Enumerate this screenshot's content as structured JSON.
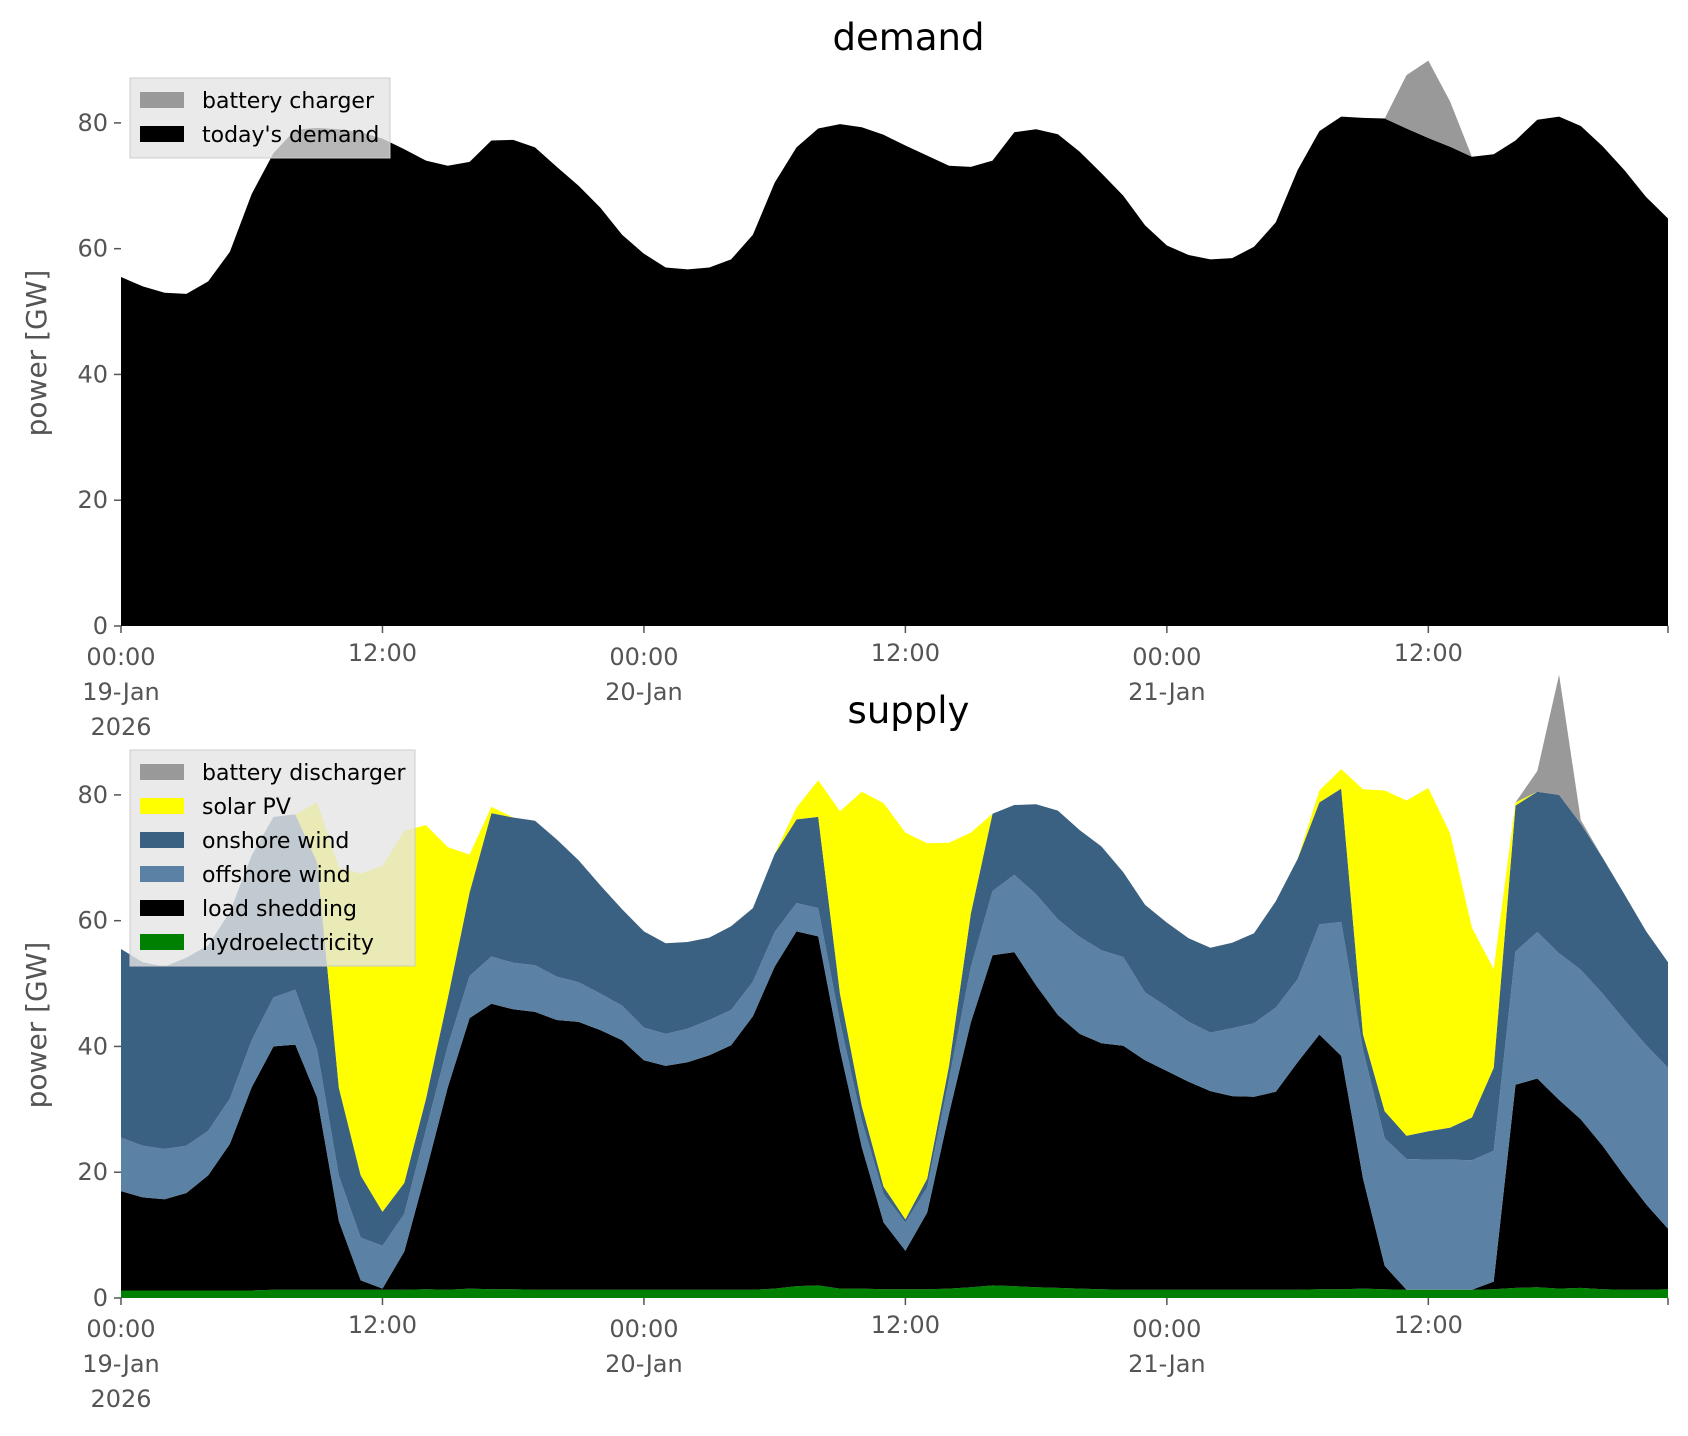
{
  "chart_data": [
    {
      "type": "area",
      "stacked": true,
      "title": "demand",
      "ylabel": "power [GW]",
      "xlabel": "",
      "ylim": [
        0,
        90
      ],
      "xlim": [
        "2026-01-19 00:00",
        "2026-01-21 23:00"
      ],
      "x_start": "2026-01-19 00:00",
      "x_step_hours": 1,
      "y_ticks": [
        0,
        20,
        40,
        60,
        80
      ],
      "x_ticks": [
        {
          "hour": 0,
          "lines": [
            "00:00",
            "19-Jan",
            "2026"
          ]
        },
        {
          "hour": 12,
          "lines": [
            "12:00"
          ]
        },
        {
          "hour": 24,
          "lines": [
            "00:00",
            "20-Jan"
          ]
        },
        {
          "hour": 36,
          "lines": [
            "12:00"
          ]
        },
        {
          "hour": 48,
          "lines": [
            "00:00",
            "21-Jan"
          ]
        },
        {
          "hour": 60,
          "lines": [
            "12:00"
          ]
        },
        {
          "hour": 71,
          "lines": []
        }
      ],
      "grid": false,
      "legend_position": "top-left",
      "series": [
        {
          "name": "today's demand",
          "color": "#000000",
          "values": [
            55.5,
            54,
            53,
            52.8,
            54.8,
            59.5,
            68.7,
            75.2,
            78.9,
            79.2,
            79,
            78.5,
            77.5,
            75.8,
            74,
            73.2,
            73.8,
            77.2,
            77.3,
            76.1,
            73,
            70,
            66.5,
            62.2,
            59.2,
            57,
            56.7,
            57,
            58.3,
            62.2,
            70.5,
            76.1,
            79.1,
            79.8,
            79.3,
            78.1,
            76.4,
            74.8,
            73.2,
            73,
            74,
            78.5,
            79,
            78.2,
            75.4,
            72,
            68.4,
            63.7,
            60.5,
            59,
            58.3,
            58.5,
            60.3,
            64.2,
            72.5,
            78.7,
            81,
            80.8,
            80.7,
            79.1,
            77.6,
            76.2,
            74.6,
            75,
            77.2,
            80.5,
            81,
            79.5,
            76.3,
            72.5,
            68.2,
            64.8
          ]
        },
        {
          "name": "battery charger",
          "color": "#999999",
          "values": [
            0,
            0,
            0,
            0,
            0,
            0,
            0,
            0,
            0,
            0,
            0,
            0,
            0,
            0,
            0,
            0,
            0,
            0,
            0,
            0,
            0,
            0,
            0,
            0,
            0,
            0,
            0,
            0,
            0,
            0,
            0,
            0,
            0,
            0,
            0,
            0,
            0,
            0,
            0,
            0,
            0,
            0,
            0,
            0,
            0,
            0,
            0,
            0,
            0,
            0,
            0,
            0,
            0,
            0,
            0,
            0,
            0,
            0,
            0,
            8.5,
            12.3,
            7.2,
            0,
            0,
            0,
            0,
            0,
            0,
            0,
            0,
            0,
            0
          ]
        }
      ],
      "legend_order": [
        "battery charger",
        "today's demand"
      ]
    },
    {
      "type": "area",
      "stacked": true,
      "title": "supply",
      "ylabel": "power [GW]",
      "xlabel": "",
      "ylim": [
        0,
        90
      ],
      "xlim": [
        "2026-01-19 00:00",
        "2026-01-21 23:00"
      ],
      "x_start": "2026-01-19 00:00",
      "x_step_hours": 1,
      "y_ticks": [
        0,
        20,
        40,
        60,
        80
      ],
      "x_ticks": [
        {
          "hour": 0,
          "lines": [
            "00:00",
            "19-Jan",
            "2026"
          ]
        },
        {
          "hour": 12,
          "lines": [
            "12:00"
          ]
        },
        {
          "hour": 24,
          "lines": [
            "00:00",
            "20-Jan"
          ]
        },
        {
          "hour": 36,
          "lines": [
            "12:00"
          ]
        },
        {
          "hour": 48,
          "lines": [
            "00:00",
            "21-Jan"
          ]
        },
        {
          "hour": 60,
          "lines": [
            "12:00"
          ]
        },
        {
          "hour": 71,
          "lines": []
        }
      ],
      "grid": false,
      "legend_position": "top-left",
      "series": [
        {
          "name": "hydroelectricity",
          "color": "#008000",
          "values": [
            1.2,
            1.2,
            1.2,
            1.2,
            1.2,
            1.2,
            1.2,
            1.3,
            1.3,
            1.3,
            1.3,
            1.3,
            1.3,
            1.3,
            1.4,
            1.3,
            1.5,
            1.4,
            1.4,
            1.3,
            1.3,
            1.3,
            1.3,
            1.3,
            1.3,
            1.3,
            1.3,
            1.3,
            1.3,
            1.3,
            1.5,
            1.9,
            2,
            1.5,
            1.5,
            1.4,
            1.4,
            1.4,
            1.5,
            1.7,
            2,
            1.9,
            1.7,
            1.6,
            1.5,
            1.4,
            1.3,
            1.3,
            1.3,
            1.3,
            1.3,
            1.3,
            1.3,
            1.3,
            1.3,
            1.4,
            1.4,
            1.5,
            1.4,
            1.3,
            1.3,
            1.3,
            1.3,
            1.4,
            1.6,
            1.7,
            1.5,
            1.6,
            1.4,
            1.3,
            1.3,
            1.4
          ]
        },
        {
          "name": "load shedding",
          "color": "#000000",
          "values": [
            15.8,
            14.8,
            14.5,
            15.5,
            18.3,
            23.3,
            32.3,
            38.7,
            39,
            30.6,
            10.9,
            1.5,
            0.2,
            6.1,
            18.7,
            32.2,
            43,
            45.4,
            44.5,
            44.2,
            42.9,
            42.6,
            41.3,
            39.7,
            36.5,
            35.6,
            36.2,
            37.3,
            38.9,
            43.5,
            51.2,
            56.4,
            55.5,
            37.9,
            22.5,
            10.6,
            6.1,
            12.2,
            27.8,
            42.1,
            52.5,
            53.1,
            48,
            43.4,
            40.5,
            39.1,
            38.8,
            36.5,
            34.8,
            33.1,
            31.6,
            30.8,
            30.7,
            31.5,
            36.2,
            40.5,
            37.1,
            17.5,
            3.7,
            0,
            0,
            0,
            0,
            1.2,
            32.3,
            33.2,
            30,
            26.8,
            22.8,
            18.1,
            13.6,
            9.6
          ]
        },
        {
          "name": "offshore wind",
          "color": "#5b81a4",
          "values": [
            8.5,
            8.2,
            8,
            7.5,
            7.1,
            7.2,
            7.5,
            7.8,
            8.7,
            7.6,
            7.2,
            6.8,
            6.8,
            6,
            6.7,
            6.6,
            6.7,
            7.5,
            7.4,
            7.4,
            6.9,
            6.3,
            5.8,
            5.5,
            5.2,
            5.1,
            5.3,
            5.6,
            5.6,
            5.5,
            5.5,
            4.5,
            4.5,
            4.5,
            4.2,
            4.5,
            4.5,
            4,
            5.4,
            8.8,
            10.2,
            12.3,
            14.5,
            15.2,
            15.4,
            14.8,
            14.1,
            10.8,
            10.2,
            9.5,
            9.3,
            10.8,
            11.7,
            13.4,
            13.2,
            17.5,
            21.3,
            20.5,
            20.3,
            20.8,
            20.7,
            20.7,
            20.6,
            20.8,
            21.2,
            23.3,
            23.3,
            23.8,
            24.2,
            24.8,
            25.3,
            25.6
          ]
        },
        {
          "name": "onshore wind",
          "color": "#3b6182",
          "values": [
            30,
            29.2,
            29,
            29.9,
            29.5,
            29.7,
            29.4,
            28.7,
            27.9,
            29.8,
            14,
            9.9,
            5.4,
            4.9,
            4.9,
            7.6,
            13.3,
            22.8,
            23.1,
            23,
            21.8,
            19.4,
            17.2,
            15.3,
            15.3,
            14.4,
            13.8,
            13.1,
            13.3,
            11.7,
            12.4,
            13.3,
            14.5,
            4.5,
            2.3,
            1.2,
            0.5,
            1.4,
            2.2,
            8.5,
            12.3,
            11.1,
            14.3,
            17.3,
            17,
            16.5,
            13.5,
            13.9,
            13.4,
            13.3,
            13.5,
            13.6,
            14.3,
            16.9,
            19.1,
            19.4,
            21.2,
            2.4,
            4.3,
            3.7,
            4.5,
            5.1,
            6.8,
            13.2,
            23.2,
            22.3,
            25.2,
            23.2,
            21.6,
            20,
            18.1,
            16.8
          ]
        },
        {
          "name": "solar PV",
          "color": "#ffff00",
          "values": [
            0,
            0,
            0,
            0,
            0,
            0,
            0,
            0,
            0,
            9.5,
            35,
            48,
            55,
            56,
            43.5,
            24,
            6,
            1,
            0,
            0,
            0,
            0,
            0,
            0,
            0,
            0,
            0,
            0,
            0,
            0,
            0,
            1.9,
            5.8,
            29,
            50,
            61,
            61.5,
            53.3,
            35.5,
            12.9,
            0,
            0,
            0,
            0,
            0,
            0,
            0,
            0,
            0,
            0,
            0,
            0,
            0,
            0,
            0,
            1.9,
            3.1,
            39,
            51,
            53.3,
            54.6,
            46.8,
            30.2,
            15.7,
            0.5,
            0,
            0,
            0,
            0,
            0,
            0,
            0
          ]
        },
        {
          "name": "battery discharger",
          "color": "#999999",
          "values": [
            0,
            0,
            0,
            0,
            0,
            0,
            0,
            0,
            0,
            0,
            0,
            0,
            0,
            0,
            0,
            0,
            0,
            0,
            0,
            0,
            0,
            0,
            0,
            0,
            0,
            0,
            0,
            0,
            0,
            0,
            0,
            0,
            0,
            0,
            0,
            0,
            0,
            0,
            0,
            0,
            0,
            0,
            0,
            0,
            0,
            0,
            0,
            0,
            0,
            0,
            0,
            0,
            0,
            0,
            0,
            0,
            0,
            0,
            0,
            0,
            0,
            0,
            0,
            0,
            0,
            3.3,
            19.1,
            0.6,
            0,
            0,
            0,
            0
          ]
        }
      ],
      "legend_order": [
        "battery discharger",
        "solar PV",
        "onshore wind",
        "offshore wind",
        "load shedding",
        "hydroelectricity"
      ]
    }
  ]
}
